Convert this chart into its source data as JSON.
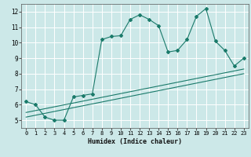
{
  "xlabel": "Humidex (Indice chaleur)",
  "bg_color": "#cce8e8",
  "grid_color": "#ffffff",
  "line_color": "#1a7a6a",
  "xlim": [
    -0.5,
    23.5
  ],
  "ylim": [
    4.5,
    12.5
  ],
  "yticks": [
    5,
    6,
    7,
    8,
    9,
    10,
    11,
    12
  ],
  "xticks": [
    0,
    1,
    2,
    3,
    4,
    5,
    6,
    7,
    8,
    9,
    10,
    11,
    12,
    13,
    14,
    15,
    16,
    17,
    18,
    19,
    20,
    21,
    22,
    23
  ],
  "series1_x": [
    0,
    1,
    2,
    3,
    4,
    5,
    6,
    7,
    8,
    9,
    10,
    11,
    12,
    13,
    14,
    15,
    16,
    17,
    18,
    19,
    20,
    21,
    22,
    23
  ],
  "series1_y": [
    6.2,
    6.0,
    5.2,
    5.0,
    5.0,
    6.5,
    6.6,
    6.7,
    10.2,
    10.4,
    10.45,
    11.5,
    11.8,
    11.5,
    11.1,
    9.4,
    9.5,
    10.2,
    11.7,
    12.2,
    10.1,
    9.5,
    8.5,
    9.0
  ],
  "line2_x": [
    0,
    23
  ],
  "line2_y": [
    5.5,
    8.3
  ],
  "line3_x": [
    0,
    23
  ],
  "line3_y": [
    5.2,
    8.0
  ]
}
